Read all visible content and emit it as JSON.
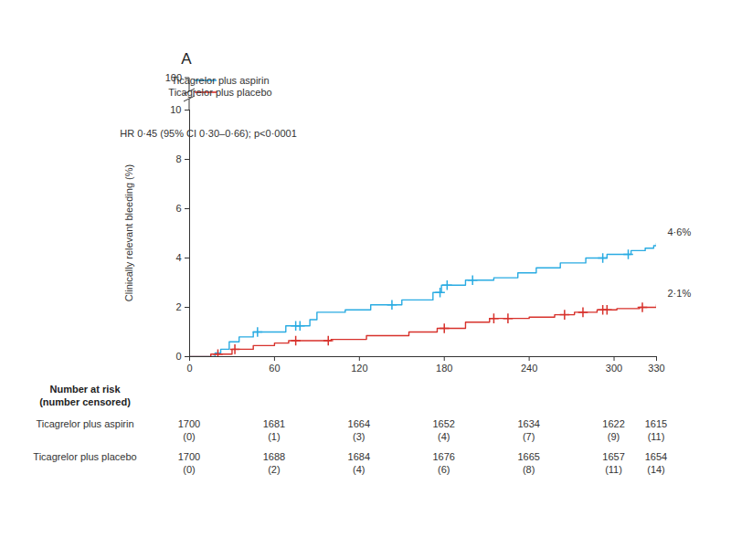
{
  "chart_data": {
    "type": "line",
    "panel_label": "A",
    "ylabel": "Clinically relevant bleeding (%)",
    "annotation": "HR 0·45 (95% CI 0·30–0·66); p<0·0001",
    "xlim": [
      0,
      330
    ],
    "xticks": [
      0,
      60,
      120,
      180,
      240,
      300,
      330
    ],
    "ylim": [
      0,
      10
    ],
    "yticks": [
      0,
      2,
      4,
      6,
      8,
      10
    ],
    "y_break_tick": 100,
    "grid": false,
    "legend": "top-left",
    "series": [
      {
        "name": "Ticagrelor plus aspirin",
        "color": "#29abe2",
        "line_style": "step",
        "marker": "plus",
        "x": [
          0,
          18,
          22,
          28,
          35,
          45,
          50,
          68,
          85,
          90,
          110,
          128,
          150,
          172,
          178,
          195,
          215,
          232,
          245,
          262,
          280,
          295,
          312,
          322,
          328,
          330
        ],
        "values": [
          0,
          0.15,
          0.3,
          0.6,
          0.8,
          1.0,
          1.0,
          1.25,
          1.5,
          1.8,
          1.9,
          2.1,
          2.3,
          2.6,
          2.9,
          3.1,
          3.2,
          3.4,
          3.6,
          3.8,
          4.0,
          4.15,
          4.3,
          4.4,
          4.5,
          4.6
        ],
        "censor_points": {
          "x": [
            48,
            75,
            78,
            143,
            177,
            182,
            200,
            292,
            310
          ],
          "y": [
            1.0,
            1.25,
            1.25,
            2.1,
            2.6,
            2.9,
            3.1,
            4.0,
            4.15
          ]
        },
        "end_label": {
          "value": 4.6,
          "label": "4·6%"
        }
      },
      {
        "name": "Ticagrelor plus placebo",
        "color": "#d7312b",
        "line_style": "step",
        "marker": "plus",
        "x": [
          0,
          15,
          30,
          45,
          60,
          70,
          100,
          125,
          155,
          175,
          195,
          212,
          240,
          258,
          272,
          288,
          302,
          318,
          330
        ],
        "values": [
          0,
          0.1,
          0.3,
          0.45,
          0.55,
          0.65,
          0.7,
          0.85,
          1.0,
          1.15,
          1.4,
          1.55,
          1.6,
          1.7,
          1.8,
          1.9,
          1.95,
          2.0,
          2.1
        ],
        "censor_points": {
          "x": [
            20,
            32,
            75,
            98,
            180,
            215,
            225,
            265,
            278,
            292,
            295,
            320
          ],
          "y": [
            0.1,
            0.3,
            0.65,
            0.65,
            1.15,
            1.55,
            1.55,
            1.7,
            1.8,
            1.9,
            1.9,
            2.0
          ]
        },
        "end_label": {
          "value": 2.1,
          "label": "2·1%"
        }
      }
    ],
    "risk_table": {
      "title": [
        "Number at risk",
        "(number censored)"
      ],
      "times": [
        0,
        60,
        120,
        180,
        240,
        300,
        330
      ],
      "rows": [
        {
          "name": "Ticagrelor plus aspirin",
          "at_risk": [
            1700,
            1681,
            1664,
            1652,
            1634,
            1622,
            1615
          ],
          "censored": [
            {
              "value": 0,
              "label": "(0)"
            },
            {
              "value": 1,
              "label": "(1)"
            },
            {
              "value": 3,
              "label": "(3)"
            },
            {
              "value": 4,
              "label": "(4)"
            },
            {
              "value": 7,
              "label": "(7)"
            },
            {
              "value": 9,
              "label": "(9)"
            },
            {
              "value": 11,
              "label": "(11)"
            }
          ]
        },
        {
          "name": "Ticagrelor plus placebo",
          "at_risk": [
            1700,
            1688,
            1684,
            1676,
            1665,
            1657,
            1654
          ],
          "censored": [
            {
              "value": 0,
              "label": "(0)"
            },
            {
              "value": 2,
              "label": "(2)"
            },
            {
              "value": 4,
              "label": "(4)"
            },
            {
              "value": 6,
              "label": "(6)"
            },
            {
              "value": 8,
              "label": "(8)"
            },
            {
              "value": 11,
              "label": "(11)"
            },
            {
              "value": 14,
              "label": "(14)"
            }
          ]
        }
      ]
    }
  }
}
